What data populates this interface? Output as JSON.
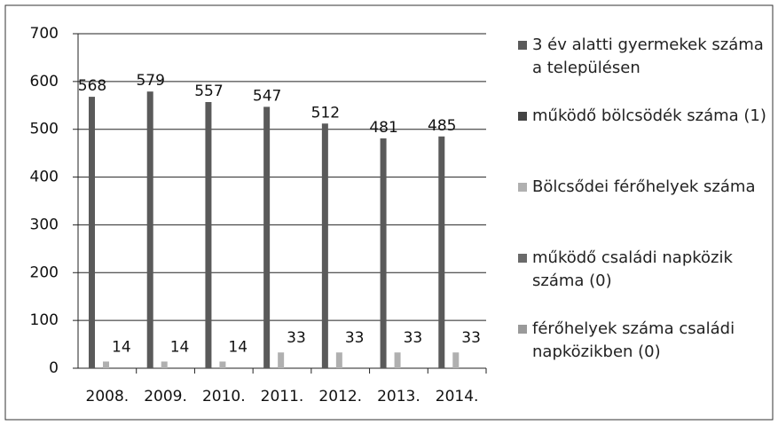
{
  "chart_data": {
    "type": "bar",
    "categories": [
      "2008.",
      "2009.",
      "2010.",
      "2011.",
      "2012.",
      "2013.",
      "2014."
    ],
    "series": [
      {
        "name": "3 év alatti gyermekek száma a településen",
        "color": "#5a5a5a",
        "values": [
          568,
          579,
          557,
          547,
          512,
          481,
          485
        ],
        "show_labels": true
      },
      {
        "name": "működő bölcsödék száma (1)",
        "color": "#444444",
        "values": [
          1,
          1,
          1,
          1,
          1,
          1,
          1
        ],
        "show_labels": false
      },
      {
        "name": "Bölcsődei férőhelyek száma",
        "color": "#b0b0b0",
        "values": [
          14,
          14,
          14,
          33,
          33,
          33,
          33
        ],
        "show_labels": true
      },
      {
        "name": "működő családi napközik száma (0)",
        "color": "#6a6a6a",
        "values": [
          0,
          0,
          0,
          0,
          0,
          0,
          0
        ],
        "show_labels": false
      },
      {
        "name": "férőhelyek száma családi napközikben (0)",
        "color": "#9a9a9a",
        "values": [
          0,
          0,
          0,
          0,
          0,
          0,
          0
        ],
        "show_labels": false
      }
    ],
    "ylim": [
      0,
      700
    ],
    "yticks": [
      0,
      100,
      200,
      300,
      400,
      500,
      600,
      700
    ],
    "grid": true,
    "legend": "right"
  }
}
